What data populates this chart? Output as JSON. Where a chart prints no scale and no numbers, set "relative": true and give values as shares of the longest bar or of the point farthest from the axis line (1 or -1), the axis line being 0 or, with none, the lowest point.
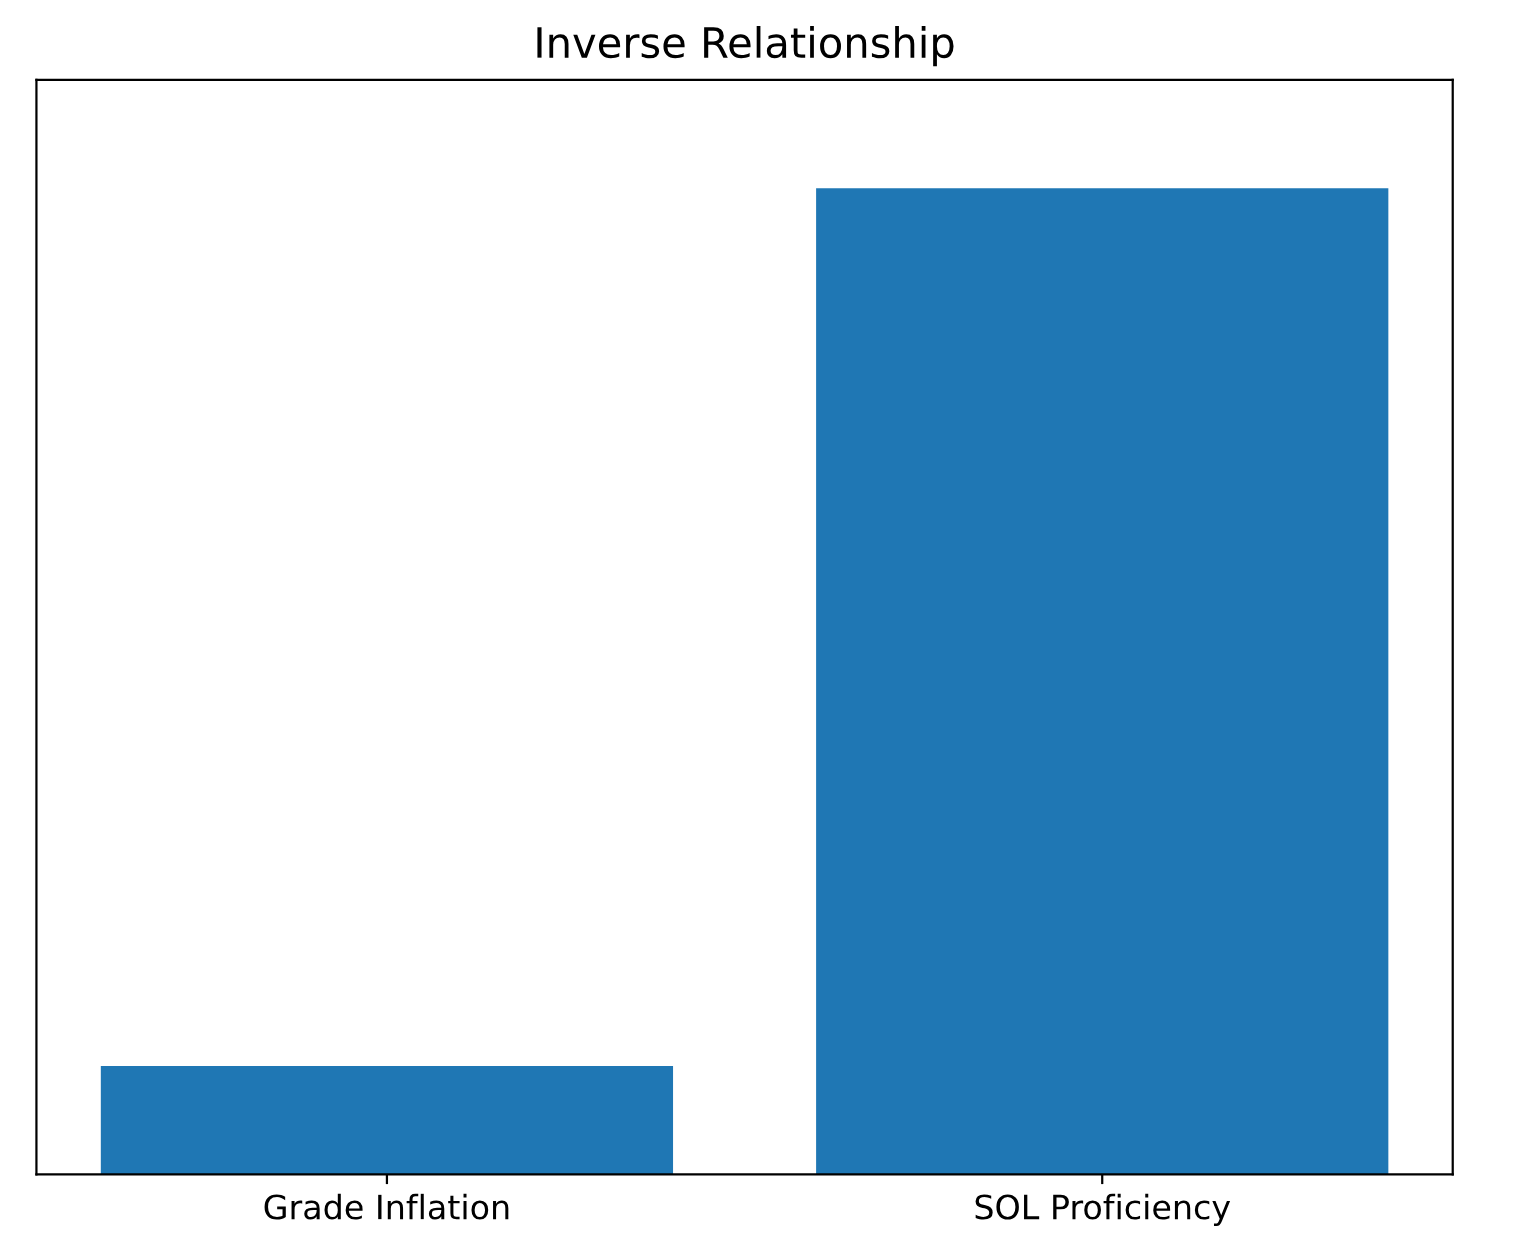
{
  "chart_data": {
    "type": "bar",
    "title": "Inverse Relationship",
    "relative": true,
    "categories": [
      "Grade Inflation",
      "SOL Proficiency"
    ],
    "values": [
      0.11,
      1
    ],
    "color": "#1f77b4",
    "grid": false,
    "legend": false
  }
}
